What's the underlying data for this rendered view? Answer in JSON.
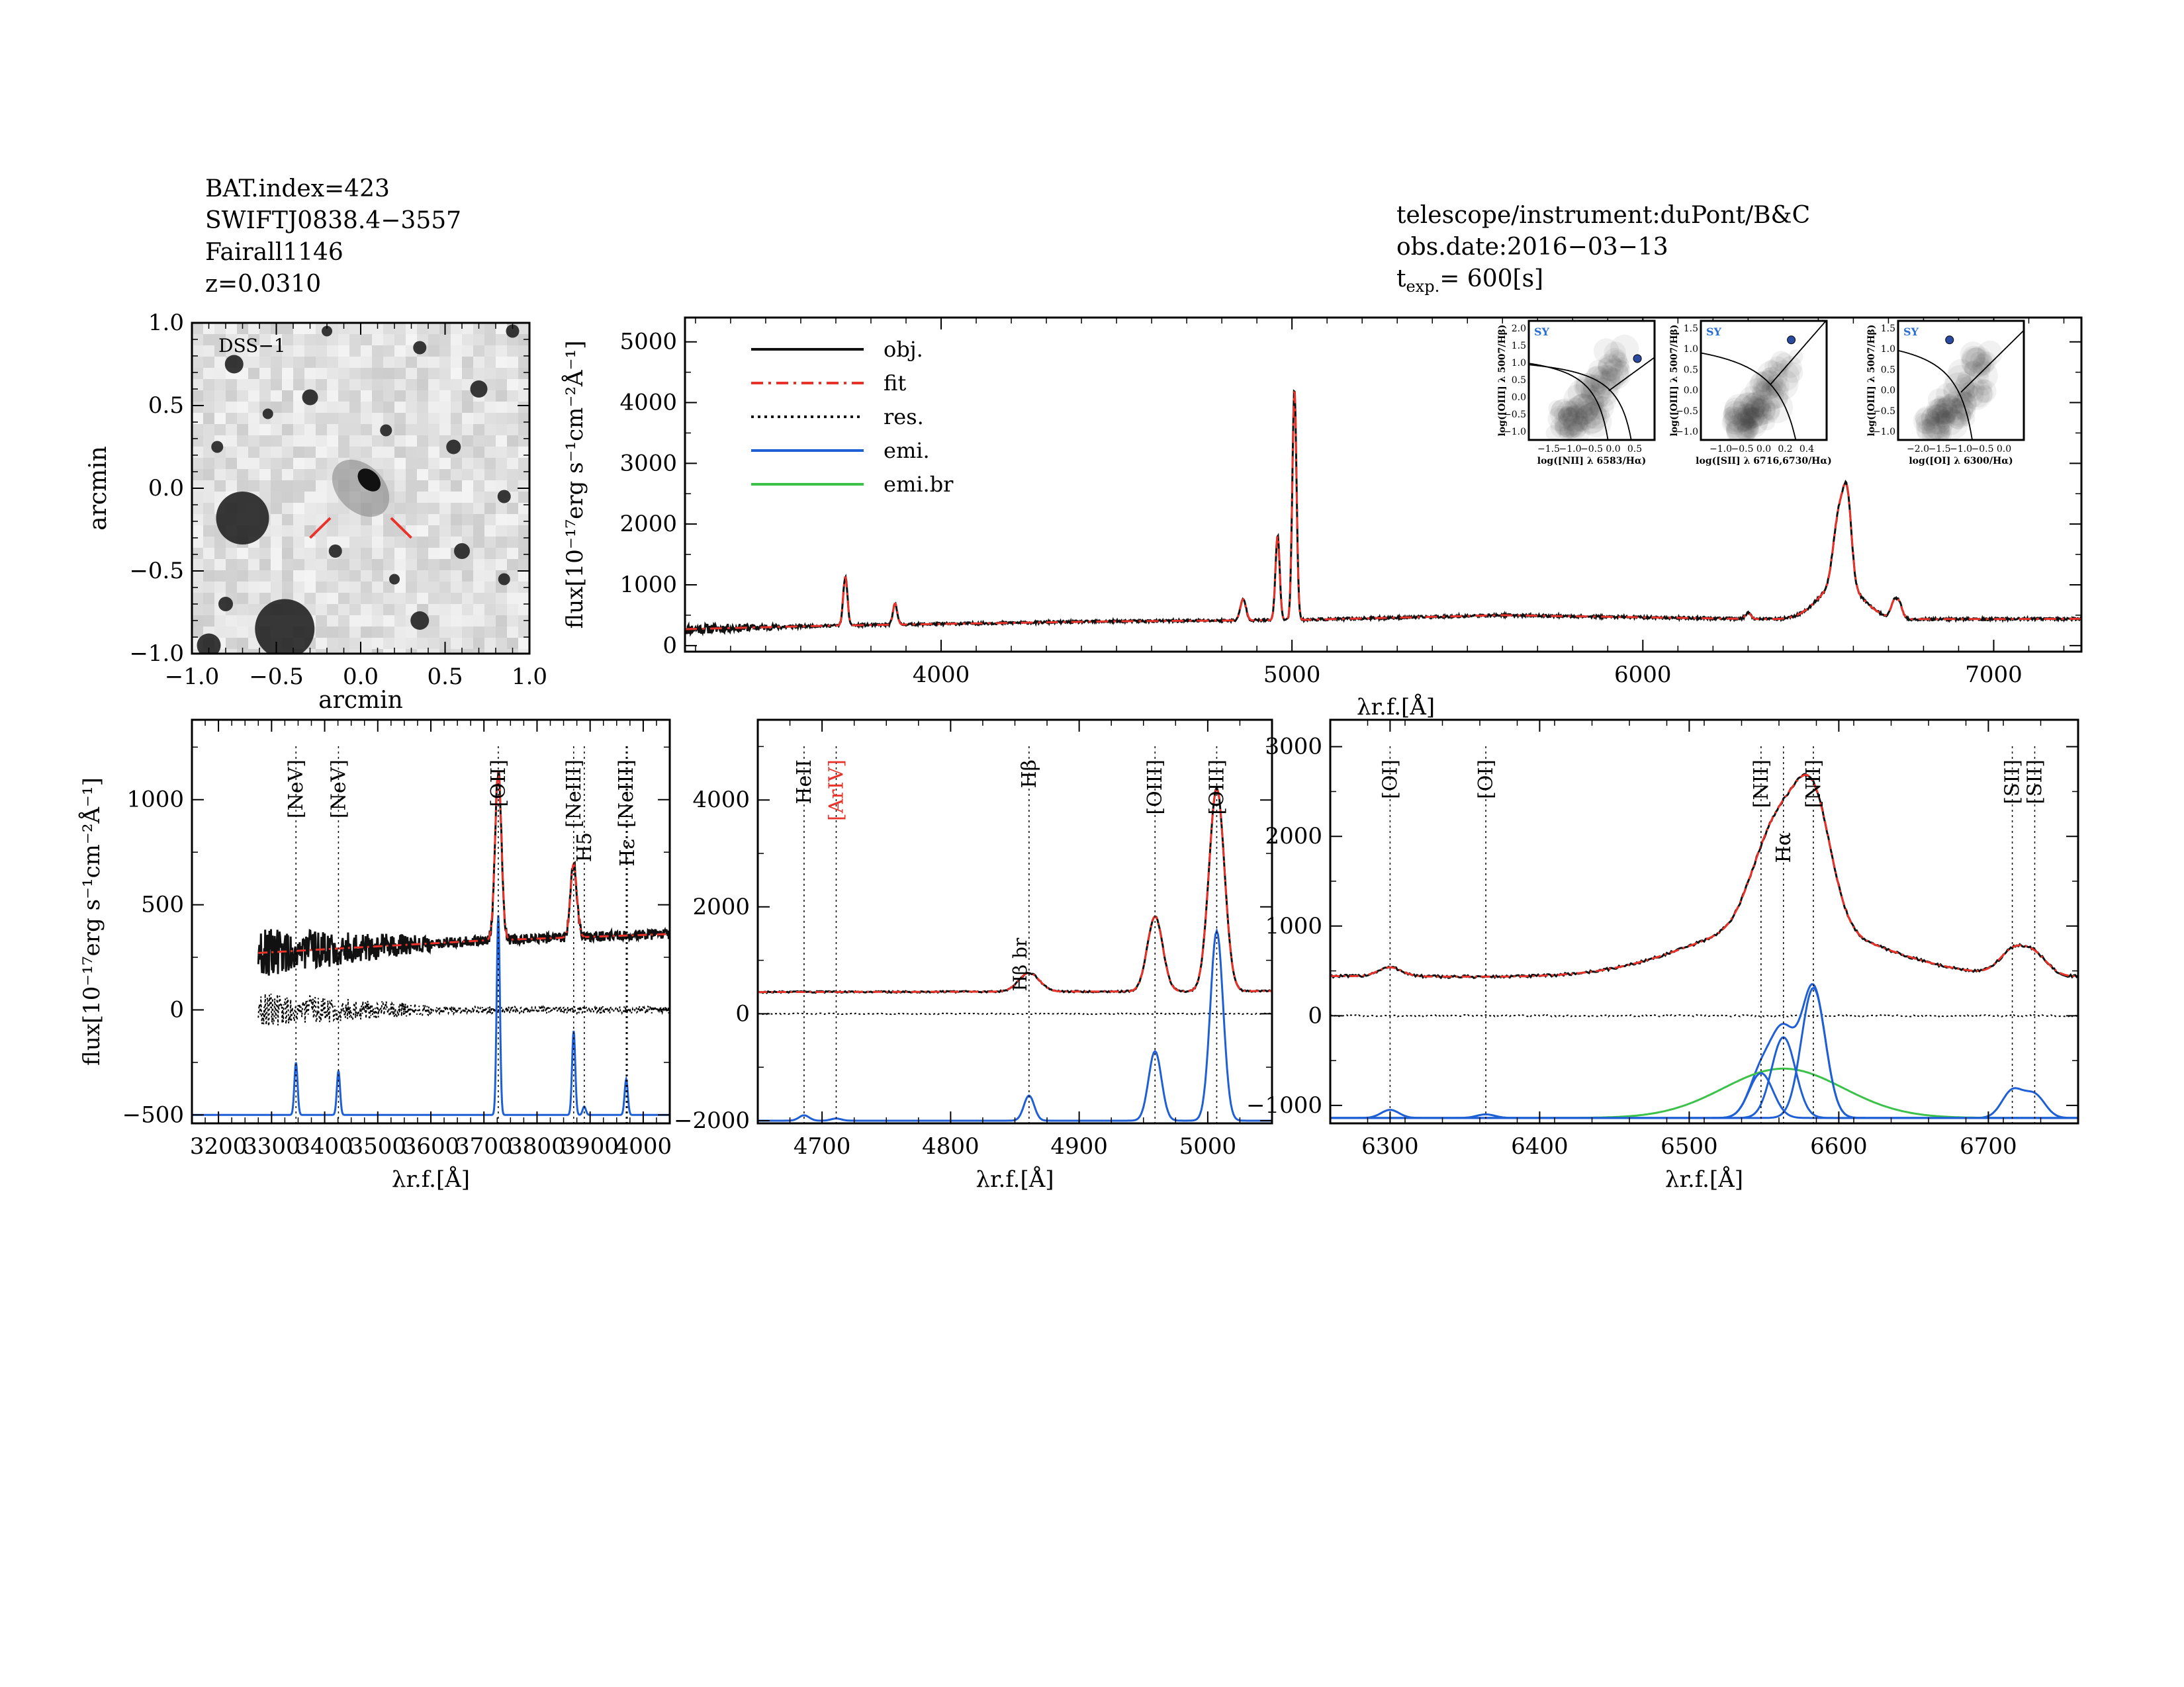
{
  "header": {
    "left": [
      "BAT.index=423",
      "SWIFTJ0838.4−3557",
      "Fairall1146",
      "z=0.0310"
    ],
    "right": [
      "telescope/instrument:duPont/B&C",
      "obs.date:2016−03−13"
    ],
    "texp_label": "t",
    "texp_sub": "exp.",
    "texp_value": "=  600[s]"
  },
  "colors": {
    "obj": "#111111",
    "fit": "#e8322a",
    "emi": "#1f5fd6",
    "emi_br": "#3cc24a",
    "sy": "#2a6fd6"
  },
  "chart_data": [
    {
      "id": "dss_image",
      "type": "heatmap",
      "label": "DSS−1",
      "xlabel": "arcmin",
      "ylabel": "arcmin",
      "xlim": [
        -1.0,
        1.0
      ],
      "ylim": [
        -1.0,
        1.0
      ],
      "xticks": [
        "−1.0",
        "−0.5",
        "0.0",
        "0.5",
        "1.0"
      ],
      "yticks": [
        "1.0",
        "0.5",
        "0.0",
        "−0.5",
        "−1.0"
      ]
    },
    {
      "id": "full_spectrum",
      "type": "line",
      "ylabel": "flux[10⁻¹⁷erg s⁻¹cm⁻²Å⁻¹]",
      "xlabel": "λ r.f.[Å]",
      "xlim": [
        3270,
        7250
      ],
      "ylim": [
        -100,
        5400
      ],
      "xticks": [
        4000,
        5000,
        6000,
        7000
      ],
      "yticks": [
        0,
        1000,
        2000,
        3000,
        4000,
        5000
      ],
      "legend": [
        "obj.",
        "fit",
        "res.",
        "emi.",
        "emi.br"
      ],
      "continuum": [
        [
          3270,
          270
        ],
        [
          3700,
          330
        ],
        [
          4500,
          400
        ],
        [
          5000,
          420
        ],
        [
          5600,
          500
        ],
        [
          6400,
          430
        ],
        [
          7250,
          440
        ]
      ],
      "lines": [
        {
          "x": 3727,
          "peak": 800,
          "sigma": 6
        },
        {
          "x": 3869,
          "peak": 350,
          "sigma": 6
        },
        {
          "x": 4861,
          "peak": 350,
          "sigma": 8
        },
        {
          "x": 4959,
          "peak": 1400,
          "sigma": 6
        },
        {
          "x": 5007,
          "peak": 3800,
          "sigma": 6
        },
        {
          "x": 6300,
          "peak": 100,
          "sigma": 8
        },
        {
          "x": 6563,
          "peak": 600,
          "sigma": 60
        },
        {
          "x": 6548,
          "peak": 500,
          "sigma": 12
        },
        {
          "x": 6563,
          "peak": 800,
          "sigma": 12
        },
        {
          "x": 6583,
          "peak": 1400,
          "sigma": 12
        },
        {
          "x": 6716,
          "peak": 250,
          "sigma": 9
        },
        {
          "x": 6731,
          "peak": 220,
          "sigma": 9
        }
      ]
    },
    {
      "id": "zoom_blue",
      "type": "line",
      "ylabel": "flux[10⁻¹⁷erg s⁻¹cm⁻²Å⁻¹]",
      "xlabel": "λ r.f.[Å]",
      "xlim": [
        3150,
        4050
      ],
      "ylim": [
        -540,
        1380
      ],
      "xticks": [
        3200,
        3300,
        3400,
        3500,
        3600,
        3700,
        3800,
        3900,
        4000
      ],
      "yticks": [
        -500,
        0,
        500,
        1000
      ],
      "line_labels": [
        {
          "x": 3346,
          "text": "[NeV]",
          "color": "#000000"
        },
        {
          "x": 3426,
          "text": "[NeV]",
          "color": "#000000"
        },
        {
          "x": 3727,
          "text": "[OII]",
          "color": "#000000"
        },
        {
          "x": 3869,
          "text": "[NeIII]",
          "color": "#000000"
        },
        {
          "x": 3889,
          "text": "H5",
          "color": "#000000"
        },
        {
          "x": 3968,
          "text": "[NeIII]",
          "color": "#000000"
        },
        {
          "x": 3970,
          "text": "Hε",
          "color": "#000000"
        }
      ],
      "emi_components": [
        {
          "x": 3346,
          "peak": 250,
          "sigma": 3
        },
        {
          "x": 3426,
          "peak": 210,
          "sigma": 3
        },
        {
          "x": 3727,
          "peak": 950,
          "sigma": 3
        },
        {
          "x": 3869,
          "peak": 400,
          "sigma": 3
        },
        {
          "x": 3889,
          "peak": 40,
          "sigma": 3
        },
        {
          "x": 3968,
          "peak": 170,
          "sigma": 3
        }
      ]
    },
    {
      "id": "zoom_hbeta",
      "type": "line",
      "xlabel": "λ r.f.[Å]",
      "xlim": [
        4650,
        5050
      ],
      "ylim": [
        -2050,
        5500
      ],
      "xticks": [
        4700,
        4800,
        4900,
        5000
      ],
      "yticks": [
        -2000,
        0,
        2000,
        4000
      ],
      "line_labels": [
        {
          "x": 4686,
          "text": "HeII",
          "color": "#000000"
        },
        {
          "x": 4711,
          "text": "[ArIV]",
          "color": "#e8322a"
        },
        {
          "x": 4861,
          "text": "Hβ",
          "color": "#000000"
        },
        {
          "x": 4959,
          "text": "[OIII]",
          "color": "#000000"
        },
        {
          "x": 5007,
          "text": "[OIII]",
          "color": "#000000"
        }
      ],
      "annotation": "Hβ br",
      "emi_components": [
        {
          "x": 4686,
          "peak": 100,
          "sigma": 4
        },
        {
          "x": 4711,
          "peak": 40,
          "sigma": 4
        },
        {
          "x": 4861,
          "peak": 470,
          "sigma": 4
        },
        {
          "x": 4959,
          "peak": 1300,
          "sigma": 5
        },
        {
          "x": 5007,
          "peak": 3550,
          "sigma": 5
        }
      ]
    },
    {
      "id": "zoom_halpha",
      "type": "line",
      "xlabel": "λ r.f.[Å]",
      "xlim": [
        6260,
        6760
      ],
      "ylim": [
        -1200,
        3300
      ],
      "xticks": [
        6300,
        6400,
        6500,
        6600,
        6700
      ],
      "yticks": [
        -1000,
        0,
        1000,
        2000,
        3000
      ],
      "line_labels": [
        {
          "x": 6300,
          "text": "[OI]",
          "color": "#000000"
        },
        {
          "x": 6364,
          "text": "[OI]",
          "color": "#000000"
        },
        {
          "x": 6548,
          "text": "[NII]",
          "color": "#000000"
        },
        {
          "x": 6563,
          "text": "Hα",
          "color": "#000000"
        },
        {
          "x": 6583,
          "text": "[NII]",
          "color": "#000000"
        },
        {
          "x": 6716,
          "text": "[SII]",
          "color": "#000000"
        },
        {
          "x": 6731,
          "text": "[SII]",
          "color": "#000000"
        }
      ],
      "emi_components": [
        {
          "x": 6300,
          "peak": 90,
          "sigma": 6
        },
        {
          "x": 6364,
          "peak": 40,
          "sigma": 6
        },
        {
          "x": 6548,
          "peak": 500,
          "sigma": 8
        },
        {
          "x": 6563,
          "peak": 900,
          "sigma": 8
        },
        {
          "x": 6583,
          "peak": 1450,
          "sigma": 8
        },
        {
          "x": 6716,
          "peak": 300,
          "sigma": 7
        },
        {
          "x": 6731,
          "peak": 250,
          "sigma": 7
        }
      ],
      "broad_component": {
        "x": 6563,
        "peak": 550,
        "sigma": 40
      }
    },
    {
      "id": "bpt_nii",
      "type": "scatter",
      "tag": "SY",
      "xlabel": "log([NII] λ 6583/Hα)",
      "ylabel": "log([OIII] λ 5007/Hβ)",
      "xlim": [
        -1.6,
        0.6
      ],
      "ylim": [
        -1.0,
        2.0
      ],
      "xticks": [
        "−1.5",
        "−1.0",
        "−0.5",
        "0.0",
        "0.5"
      ],
      "yticks": [
        "2.0",
        "1.5",
        "1.0",
        "0.5",
        "0.0",
        "−0.5",
        "−1.0"
      ],
      "point": {
        "x": 0.3,
        "y": 1.05
      }
    },
    {
      "id": "bpt_sii",
      "type": "scatter",
      "tag": "SY",
      "xlabel": "log([SII] λ 6716,6730/Hα)",
      "ylabel": "log([OIII] λ 5007/Hβ)",
      "xlim": [
        -1.2,
        0.4
      ],
      "ylim": [
        -1.0,
        1.5
      ],
      "xticks": [
        "−1.0",
        "−0.5",
        "0.0",
        "0.2",
        "0.4"
      ],
      "yticks": [
        "1.5",
        "1.0",
        "0.5",
        "0.0",
        "−0.5",
        "−1.0"
      ],
      "point": {
        "x": -0.05,
        "y": 1.1
      }
    },
    {
      "id": "bpt_oi",
      "type": "scatter",
      "tag": "SY",
      "xlabel": "log([OI] λ 6300/Hα)",
      "ylabel": "log([OIII] λ 5007/Hβ)",
      "xlim": [
        -2.2,
        0.0
      ],
      "ylim": [
        -1.0,
        1.5
      ],
      "xticks": [
        "−2.0",
        "−1.5",
        "−1.0",
        "−0.5",
        "0.0"
      ],
      "yticks": [
        "1.5",
        "1.0",
        "0.5",
        "0.0",
        "−0.5",
        "−1.0"
      ],
      "point": {
        "x": -1.3,
        "y": 1.1
      }
    }
  ]
}
